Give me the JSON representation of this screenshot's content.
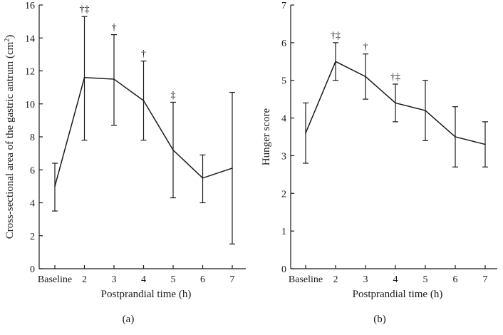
{
  "chart_data": [
    {
      "type": "line",
      "panel_label": "(a)",
      "categories": [
        "Baseline",
        "2",
        "3",
        "4",
        "5",
        "6",
        "7"
      ],
      "values": [
        5.0,
        11.6,
        11.5,
        10.2,
        7.2,
        5.5,
        6.1
      ],
      "err_low": [
        3.5,
        7.8,
        8.7,
        7.8,
        4.3,
        4.0,
        1.5
      ],
      "err_high": [
        6.4,
        15.3,
        14.2,
        12.6,
        10.1,
        6.9,
        10.7
      ],
      "annotations": [
        "",
        "†‡",
        "†",
        "†",
        "‡",
        "",
        ""
      ],
      "xlabel": "Postprandial time (h)",
      "ylabel_main": "Cross-sectional area of the gastric antrum (cm",
      "ylabel_sup": "2",
      "ylabel_close": ")",
      "ylim": [
        0,
        16
      ],
      "yticks": [
        "0",
        "2",
        "4",
        "6",
        "8",
        "10",
        "12",
        "14",
        "16"
      ]
    },
    {
      "type": "line",
      "panel_label": "(b)",
      "categories": [
        "Baseline",
        "2",
        "3",
        "4",
        "5",
        "6",
        "7"
      ],
      "values": [
        3.6,
        5.5,
        5.1,
        4.4,
        4.2,
        3.5,
        3.3
      ],
      "err_low": [
        2.8,
        5.0,
        4.5,
        3.9,
        3.4,
        2.7,
        2.7
      ],
      "err_high": [
        4.4,
        6.0,
        5.7,
        4.9,
        5.0,
        4.3,
        3.9
      ],
      "annotations": [
        "",
        "†‡",
        "†",
        "†‡",
        "",
        "",
        ""
      ],
      "xlabel": "Postprandial time (h)",
      "ylabel_main": "Hunger score",
      "ylabel_sup": "",
      "ylabel_close": "",
      "ylim": [
        0,
        7
      ],
      "yticks": [
        "0",
        "1",
        "2",
        "3",
        "4",
        "5",
        "6",
        "7"
      ]
    }
  ]
}
